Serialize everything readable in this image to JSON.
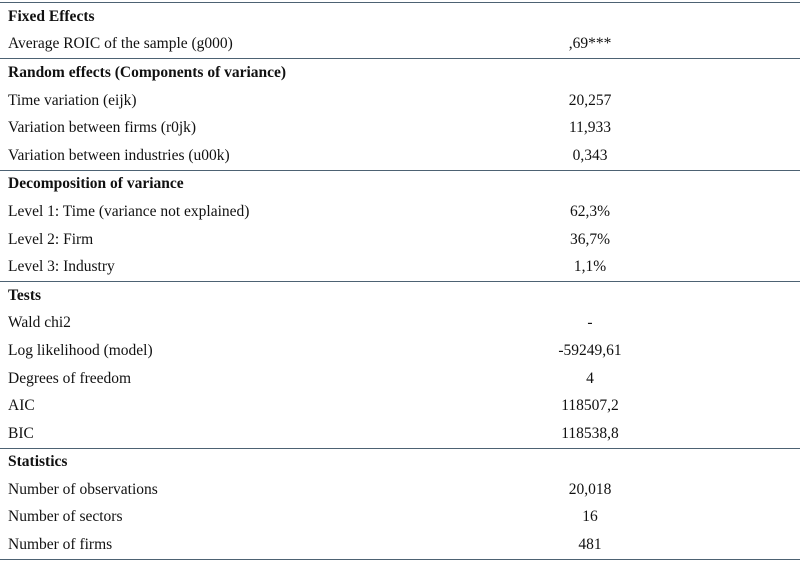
{
  "table": {
    "sections": [
      {
        "title": "Fixed Effects",
        "rows": [
          [
            "Average ROIC of the sample (g000)",
            ",69***"
          ]
        ]
      },
      {
        "title": "Random effects (Components of variance)",
        "rows": [
          [
            "Time variation (eijk)",
            "20,257"
          ],
          [
            "Variation between firms (r0jk)",
            "11,933"
          ],
          [
            "Variation between industries (u00k)",
            "0,343"
          ]
        ]
      },
      {
        "title": "Decomposition of variance",
        "rows": [
          [
            "Level 1: Time (variance not explained)",
            "62,3%"
          ],
          [
            "Level 2: Firm",
            "36,7%"
          ],
          [
            "Level 3: Industry",
            "1,1%"
          ]
        ]
      },
      {
        "title": "Tests",
        "rows": [
          [
            "Wald chi2",
            "-"
          ],
          [
            "Log likelihood (model)",
            "-59249,61"
          ],
          [
            "Degrees of freedom",
            "4"
          ],
          [
            "AIC",
            "118507,2"
          ],
          [
            "BIC",
            "118538,8"
          ]
        ]
      },
      {
        "title": "Statistics",
        "rows": [
          [
            "Number of observations",
            "20,018"
          ],
          [
            "Number of sectors",
            "16"
          ],
          [
            "Number of firms",
            "481"
          ]
        ]
      }
    ]
  }
}
